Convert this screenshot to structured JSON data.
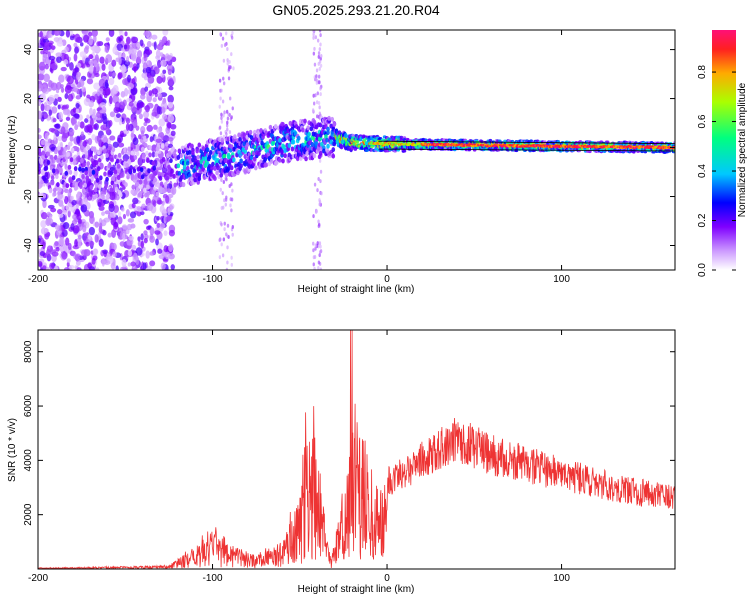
{
  "title": "GN05.2025.293.21.20.R04",
  "chart_data": [
    {
      "type": "heatmap",
      "xlabel": "Height of straight line (km)",
      "ylabel": "Frequency (Hz)",
      "xlim": [
        -200,
        165
      ],
      "ylim": [
        -50,
        48
      ],
      "x_ticks": [
        -200,
        -100,
        0,
        100
      ],
      "y_ticks": [
        -40,
        -20,
        0,
        20,
        40
      ],
      "colorbar": {
        "label": "Normalized spectral amplitude",
        "range": [
          0,
          0.97
        ],
        "ticks": [
          0.0,
          0.2,
          0.4,
          0.6,
          0.8
        ],
        "colors": [
          "#ffffff",
          "#cc99ff",
          "#7f00ff",
          "#0000ff",
          "#00c8ff",
          "#00ff80",
          "#aaff00",
          "#ffaa00",
          "#ff2020",
          "#ff1077"
        ]
      },
      "signal_track": [
        {
          "x": -200,
          "y": -10
        },
        {
          "x": -180,
          "y": -10
        },
        {
          "x": -160,
          "y": -10
        },
        {
          "x": -140,
          "y": -10
        },
        {
          "x": -120,
          "y": -8
        },
        {
          "x": -100,
          "y": -5
        },
        {
          "x": -80,
          "y": -2
        },
        {
          "x": -60,
          "y": 2
        },
        {
          "x": -40,
          "y": 4
        },
        {
          "x": -30,
          "y": 4
        },
        {
          "x": -20,
          "y": 2
        },
        {
          "x": 0,
          "y": 1.5
        },
        {
          "x": 50,
          "y": 1
        },
        {
          "x": 100,
          "y": 0.5
        },
        {
          "x": 165,
          "y": 0
        }
      ]
    },
    {
      "type": "line",
      "xlabel": "Height of straight line (km)",
      "ylabel": "SNR (10 * v/v)",
      "xlim": [
        -200,
        165
      ],
      "ylim": [
        0,
        8800
      ],
      "x_ticks": [
        -200,
        -100,
        0,
        100
      ],
      "y_ticks": [
        2000,
        4000,
        6000,
        8000
      ],
      "line_color": "#ee3333",
      "envelope": [
        {
          "x": -200,
          "y": 50
        },
        {
          "x": -150,
          "y": 100
        },
        {
          "x": -125,
          "y": 150
        },
        {
          "x": -110,
          "y": 800
        },
        {
          "x": -100,
          "y": 1400
        },
        {
          "x": -90,
          "y": 900
        },
        {
          "x": -75,
          "y": 500
        },
        {
          "x": -60,
          "y": 900
        },
        {
          "x": -50,
          "y": 3000
        },
        {
          "x": -45,
          "y": 6000
        },
        {
          "x": -40,
          "y": 4500
        },
        {
          "x": -35,
          "y": 1500
        },
        {
          "x": -32,
          "y": 300
        },
        {
          "x": -28,
          "y": 2000
        },
        {
          "x": -20,
          "y": 5500
        },
        {
          "x": -18,
          "y": 7500
        },
        {
          "x": -10,
          "y": 4000
        },
        {
          "x": 0,
          "y": 3200
        },
        {
          "x": 20,
          "y": 4000
        },
        {
          "x": 40,
          "y": 4800
        },
        {
          "x": 60,
          "y": 4200
        },
        {
          "x": 100,
          "y": 3500
        },
        {
          "x": 130,
          "y": 3000
        },
        {
          "x": 165,
          "y": 2600
        }
      ]
    }
  ]
}
